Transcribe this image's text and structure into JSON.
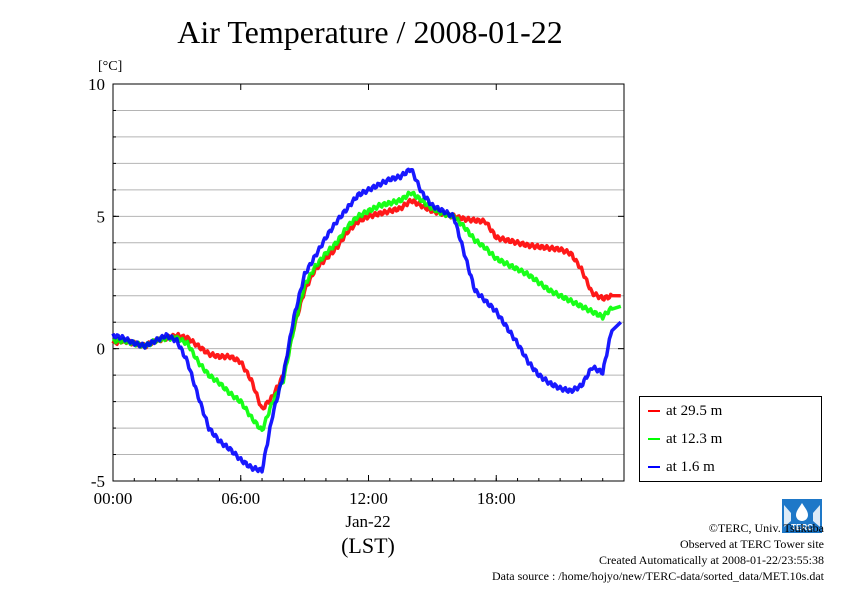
{
  "title": "Air Temperature / 2008-01-22",
  "chart_data": {
    "type": "line",
    "title": "Air Temperature / 2008-01-22",
    "ylabel": "[°C]",
    "xlabel": "(LST)",
    "date_label": "Jan-22",
    "ylim": [
      -5,
      10
    ],
    "xlim": [
      0,
      24
    ],
    "y_ticks": [
      10,
      5,
      0,
      -5
    ],
    "y_tick_labels": [
      "10",
      "5",
      "0",
      "-5"
    ],
    "x_ticks": [
      0,
      6,
      12,
      18
    ],
    "x_tick_labels": [
      "00:00",
      "06:00",
      "12:00",
      "18:00"
    ],
    "grid": true,
    "legend_position": "right",
    "series": [
      {
        "name": "at 29.5 m",
        "color": "#ff0000",
        "x": [
          0,
          0.5,
          1,
          1.5,
          2,
          2.5,
          3,
          3.5,
          4,
          4.5,
          5,
          5.5,
          6,
          6.5,
          7,
          7.5,
          8,
          8.5,
          9,
          9.5,
          10,
          10.5,
          11,
          11.5,
          12,
          12.5,
          13,
          13.5,
          14,
          14.5,
          15,
          15.5,
          16,
          16.5,
          17,
          17.5,
          18,
          18.5,
          19,
          19.5,
          20,
          20.5,
          21,
          21.5,
          22,
          22.5,
          23,
          23.5
        ],
        "values": [
          0.2,
          0.3,
          0.2,
          0.1,
          0.3,
          0.4,
          0.5,
          0.4,
          0.1,
          -0.2,
          -0.3,
          -0.3,
          -0.5,
          -1.2,
          -2.3,
          -1.8,
          -1.0,
          0.8,
          2.2,
          3.0,
          3.4,
          3.8,
          4.4,
          4.8,
          5.0,
          5.1,
          5.2,
          5.3,
          5.6,
          5.4,
          5.2,
          5.1,
          5.0,
          4.9,
          4.85,
          4.8,
          4.2,
          4.1,
          4.0,
          3.9,
          3.85,
          3.8,
          3.75,
          3.6,
          3.0,
          2.1,
          1.9,
          2.0
        ]
      },
      {
        "name": "at 12.3 m",
        "color": "#00ff00",
        "x": [
          0,
          0.5,
          1,
          1.5,
          2,
          2.5,
          3,
          3.5,
          4,
          4.5,
          5,
          5.5,
          6,
          6.5,
          7,
          7.5,
          8,
          8.5,
          9,
          9.5,
          10,
          10.5,
          11,
          11.5,
          12,
          12.5,
          13,
          13.5,
          14,
          14.5,
          15,
          15.5,
          16,
          16.5,
          17,
          17.5,
          18,
          18.5,
          19,
          19.5,
          20,
          20.5,
          21,
          21.5,
          22,
          22.5,
          23,
          23.5
        ],
        "values": [
          0.3,
          0.3,
          0.2,
          0.1,
          0.3,
          0.4,
          0.4,
          0.2,
          -0.5,
          -1.0,
          -1.3,
          -1.7,
          -2.0,
          -2.6,
          -3.1,
          -2.0,
          -1.2,
          0.8,
          2.4,
          3.1,
          3.6,
          4.0,
          4.6,
          5.0,
          5.2,
          5.4,
          5.5,
          5.6,
          5.9,
          5.6,
          5.3,
          5.1,
          5.0,
          4.6,
          4.1,
          3.8,
          3.4,
          3.2,
          3.0,
          2.8,
          2.5,
          2.2,
          2.0,
          1.8,
          1.6,
          1.4,
          1.2,
          1.6
        ]
      },
      {
        "name": "at 1.6 m",
        "color": "#0000ff",
        "x": [
          0,
          0.5,
          1,
          1.5,
          2,
          2.5,
          3,
          3.5,
          4,
          4.5,
          5,
          5.5,
          6,
          6.5,
          7,
          7.5,
          8,
          8.5,
          9,
          9.5,
          10,
          10.5,
          11,
          11.5,
          12,
          12.5,
          13,
          13.5,
          14,
          14.5,
          15,
          15.5,
          16,
          16.5,
          17,
          17.5,
          18,
          18.5,
          19,
          19.5,
          20,
          20.5,
          21,
          21.5,
          22,
          22.5,
          23,
          23.5
        ],
        "values": [
          0.5,
          0.4,
          0.2,
          0.1,
          0.3,
          0.5,
          0.3,
          -0.5,
          -1.8,
          -3.0,
          -3.5,
          -3.8,
          -4.2,
          -4.5,
          -4.6,
          -2.5,
          -1.0,
          1.2,
          2.8,
          3.5,
          4.2,
          4.8,
          5.3,
          5.8,
          6.0,
          6.2,
          6.4,
          6.5,
          6.8,
          5.9,
          5.4,
          5.2,
          5.0,
          3.6,
          2.2,
          1.8,
          1.4,
          0.8,
          0.2,
          -0.5,
          -1.0,
          -1.3,
          -1.5,
          -1.6,
          -1.4,
          -0.7,
          -0.9,
          1.0
        ]
      }
    ]
  },
  "credits": {
    "line1": "©TERC, Univ. Tsukuba",
    "line2": "Observed at TERC Tower site",
    "line3": "Created Automatically at 2008-01-22/23:55:38",
    "line4": "Data source : /home/hojyo/new/TERC-data/sorted_data/MET.10s.dat"
  },
  "logo": {
    "icon": "terc-logo",
    "text": "TERC",
    "color": "#1e78c8"
  }
}
